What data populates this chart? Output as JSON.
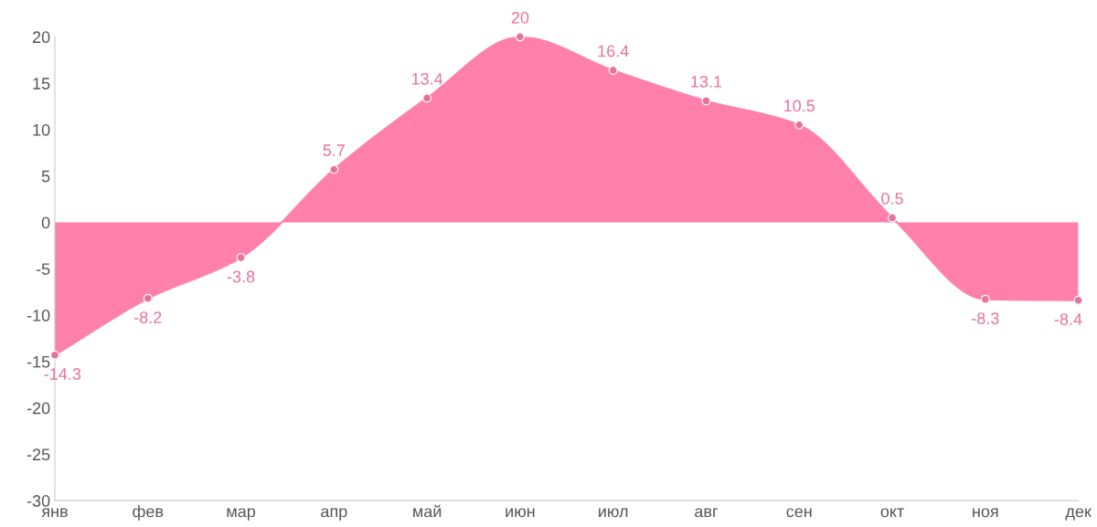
{
  "chart_data": {
    "type": "area",
    "categories": [
      "янв",
      "фев",
      "мар",
      "апр",
      "май",
      "июн",
      "июл",
      "авг",
      "сен",
      "окт",
      "ноя",
      "дек"
    ],
    "series": [
      {
        "color": "#ff80aa",
        "values": [
          -14.3,
          -8.2,
          -3.8,
          5.7,
          13.4,
          20,
          16.4,
          13.1,
          10.5,
          0.5,
          -8.3,
          -8.4
        ]
      }
    ],
    "ylim": [
      -30,
      20
    ],
    "yticks": [
      -30,
      -25,
      -20,
      -15,
      -10,
      -5,
      0,
      5,
      10,
      15,
      20
    ],
    "grid": false,
    "marker": "circle",
    "data_labels": true
  }
}
